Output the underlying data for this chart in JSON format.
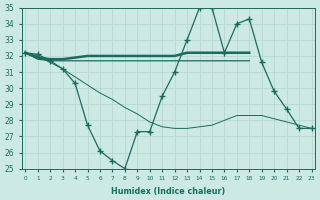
{
  "x": [
    0,
    1,
    2,
    3,
    4,
    5,
    6,
    7,
    8,
    9,
    10,
    11,
    12,
    13,
    14,
    15,
    16,
    17,
    18,
    19,
    20,
    21,
    22,
    23
  ],
  "line_main": [
    32.2,
    32.1,
    31.7,
    31.2,
    30.3,
    27.7,
    26.1,
    25.5,
    25.0,
    27.3,
    27.3,
    29.5,
    31.0,
    33.0,
    35.0,
    35.0,
    32.2,
    34.0,
    34.3,
    31.6,
    29.8,
    28.7,
    27.5,
    27.5
  ],
  "line_flat": [
    32.2,
    31.9,
    31.8,
    31.8,
    31.9,
    32.0,
    32.0,
    32.0,
    32.0,
    32.0,
    32.0,
    32.0,
    32.0,
    32.2,
    32.2,
    32.2,
    32.2,
    32.2,
    32.2,
    null,
    null,
    null,
    null,
    null
  ],
  "line_flat2": [
    32.2,
    31.8,
    31.7,
    31.7,
    31.7,
    31.7,
    31.7,
    31.7,
    31.7,
    31.7,
    31.7,
    31.7,
    31.7,
    31.7,
    31.7,
    31.7,
    31.7,
    31.7,
    31.7,
    null,
    null,
    null,
    null,
    null
  ],
  "line_decline": [
    32.2,
    32.0,
    31.6,
    31.2,
    30.7,
    30.2,
    29.7,
    29.3,
    28.8,
    28.4,
    27.9,
    27.6,
    27.5,
    27.5,
    27.6,
    27.7,
    28.0,
    28.3,
    28.3,
    28.3,
    28.1,
    27.9,
    27.7,
    27.5
  ],
  "bg_color": "#cce9e4",
  "line_color": "#1a6b5e",
  "grid_color": "#b8d8d0",
  "xlabel": "Humidex (Indice chaleur)",
  "ylim": [
    25,
    35
  ],
  "xlim": [
    -0.3,
    23.3
  ]
}
